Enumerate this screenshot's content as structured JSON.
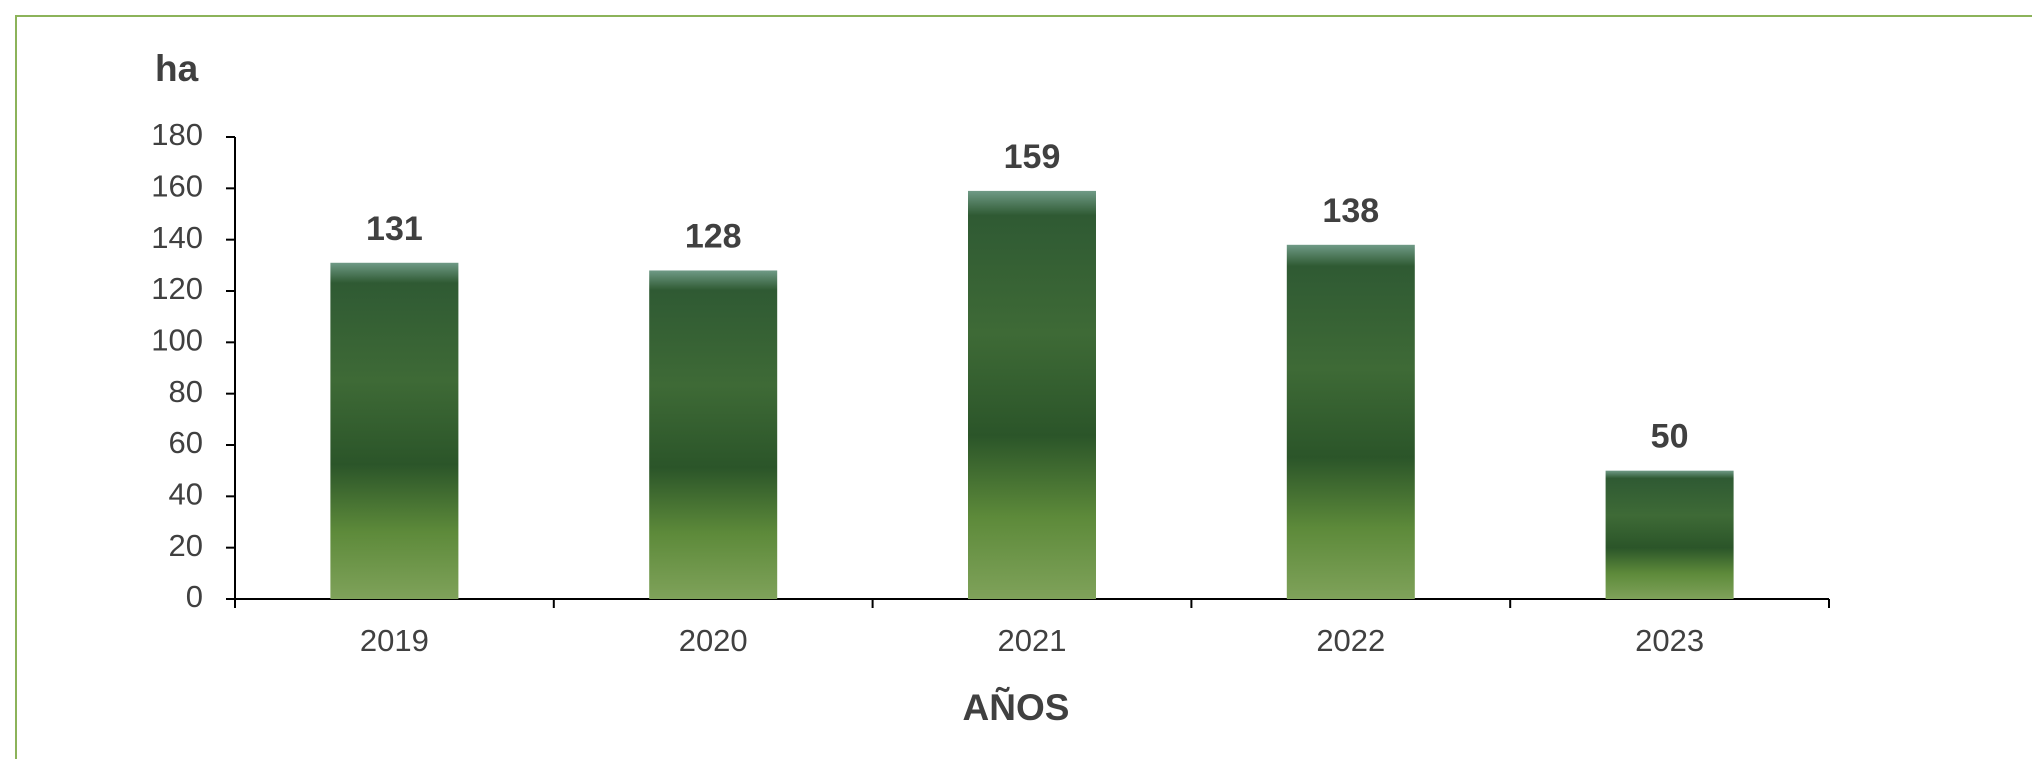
{
  "chart_data": {
    "type": "bar",
    "y_label": "ha",
    "x_label": "AÑOS",
    "categories": [
      "2019",
      "2020",
      "2021",
      "2022",
      "2023"
    ],
    "values": [
      131,
      128,
      159,
      138,
      50
    ],
    "color": "#3f6b3a",
    "ylim": [
      0,
      180
    ],
    "yticks": [
      0,
      20,
      40,
      60,
      80,
      100,
      120,
      140,
      160,
      180
    ]
  }
}
